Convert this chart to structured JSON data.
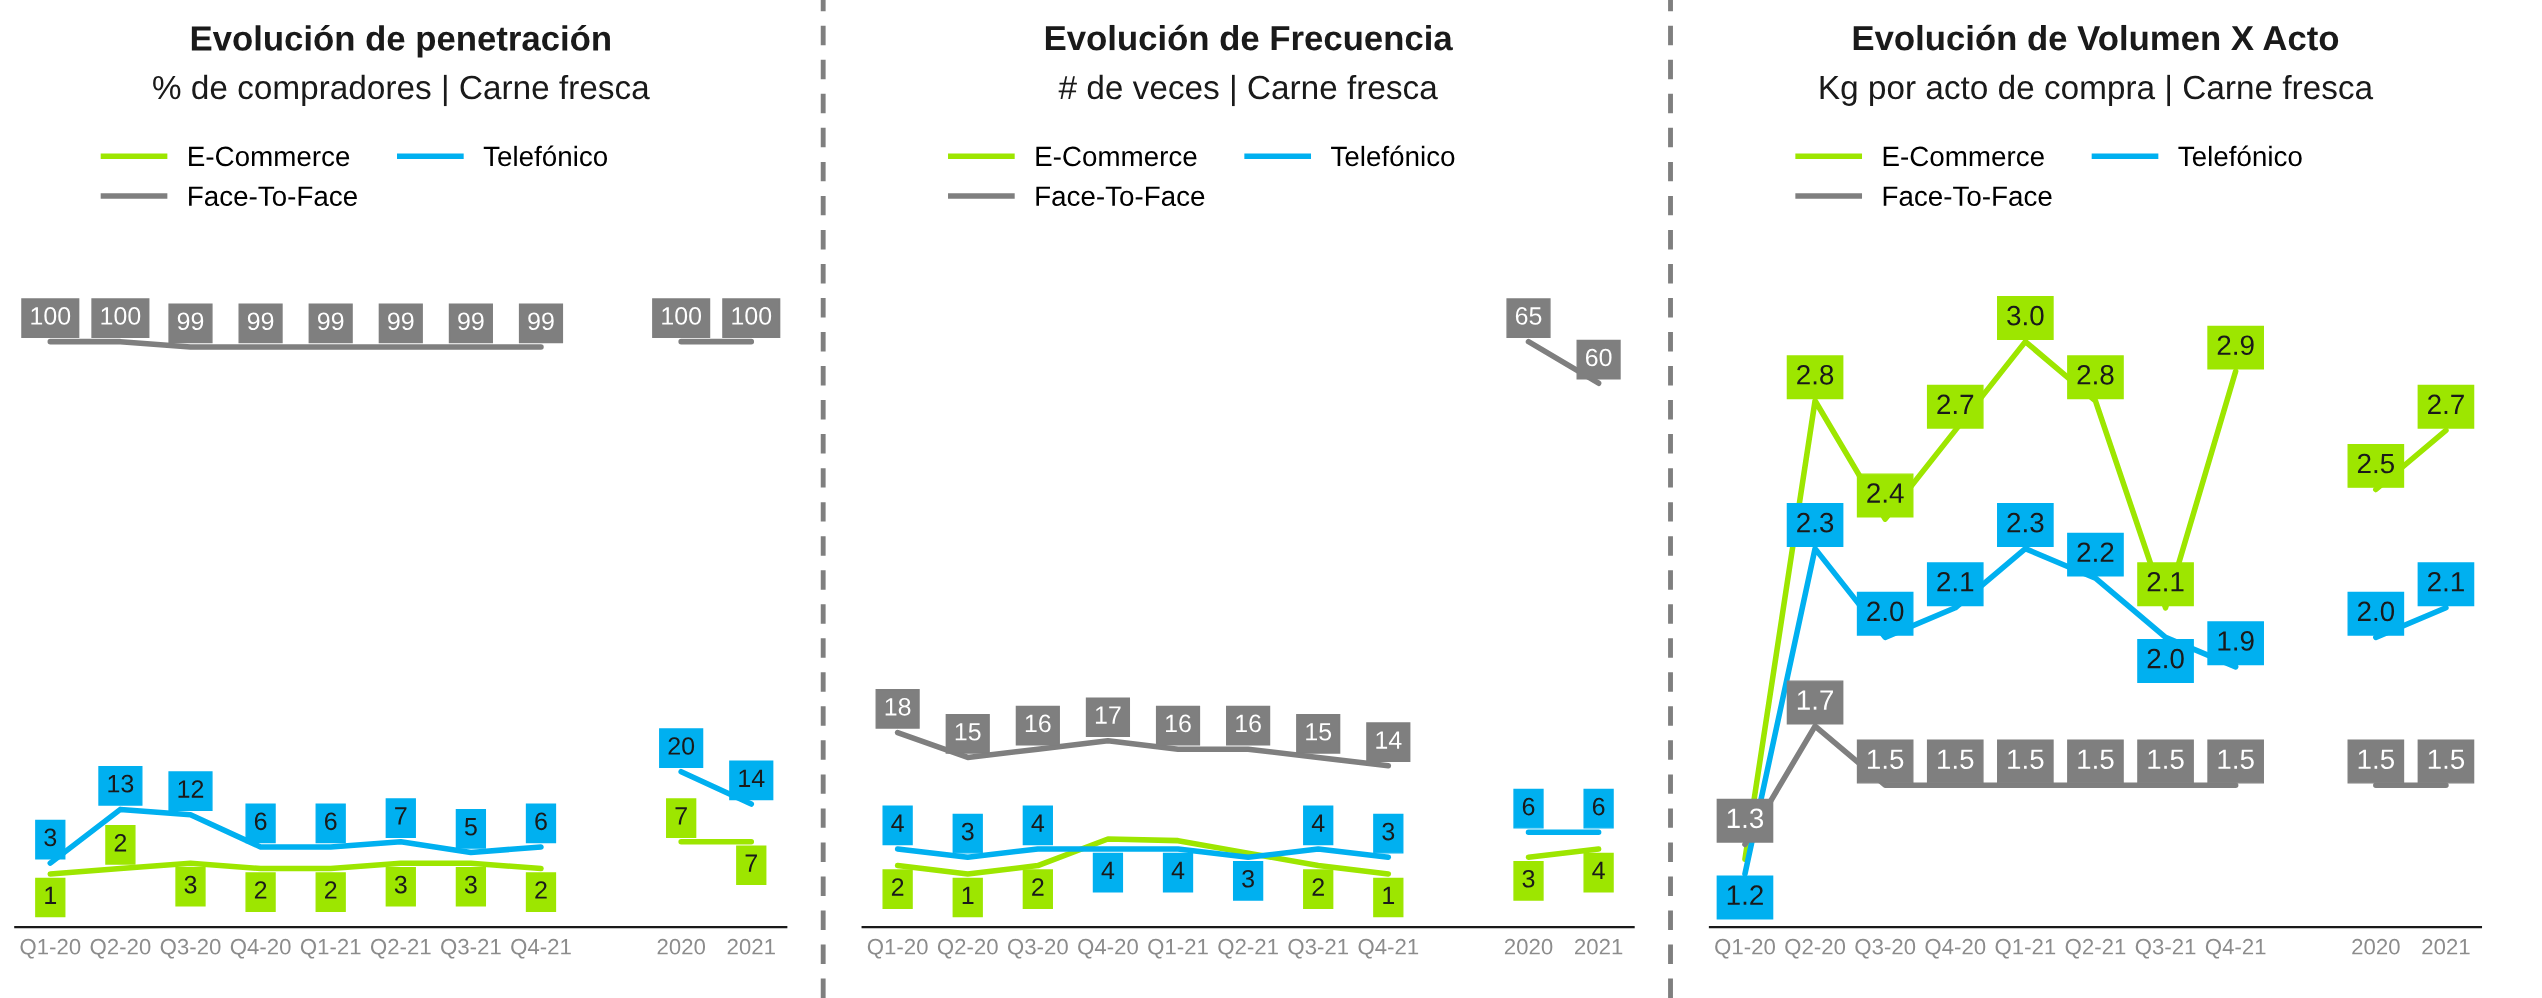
{
  "chart_data": [
    {
      "type": "line",
      "title": "Evolución de penetración",
      "subtitle": "% de compradores | Carne fresca",
      "categories": [
        "Q1-20",
        "Q2-20",
        "Q3-20",
        "Q4-20",
        "Q1-21",
        "Q2-21",
        "Q3-21",
        "Q4-21",
        null,
        "2020",
        "2021"
      ],
      "tick_labels": "x",
      "legend": "top left",
      "line_style": "solid",
      "data_labels": true,
      "series": [
        {
          "name": "E-Commerce",
          "color": "#9de600",
          "values": [
            1,
            2,
            3,
            2,
            2,
            3,
            3,
            2,
            null,
            7,
            7
          ]
        },
        {
          "name": "Telefónico",
          "color": "#00b0f0",
          "values": [
            3,
            13,
            12,
            6,
            6,
            7,
            5,
            6,
            null,
            20,
            14
          ]
        },
        {
          "name": "Face-To-Face",
          "color": "#7f7f7f",
          "values": [
            100,
            100,
            99,
            99,
            99,
            99,
            99,
            99,
            null,
            100,
            100
          ]
        }
      ]
    },
    {
      "type": "line",
      "title": "Evolución de Frecuencia",
      "subtitle": "# de veces | Carne fresca",
      "categories": [
        "Q1-20",
        "Q2-20",
        "Q3-20",
        "Q4-20",
        "Q1-21",
        "Q2-21",
        "Q3-21",
        "Q4-21",
        null,
        "2020",
        "2021"
      ],
      "tick_labels": "x",
      "legend": "top left",
      "line_style": "solid",
      "data_labels": true,
      "series": [
        {
          "name": "E-Commerce",
          "color": "#9de600",
          "values": [
            2,
            1,
            2,
            5.2,
            5.0,
            3.5,
            2,
            1,
            null,
            3,
            4
          ],
          "value_labels": [
            "2",
            "1",
            "2",
            null,
            null,
            null,
            "2",
            "1",
            null,
            "3",
            "4"
          ]
        },
        {
          "name": "Telefónico",
          "color": "#00b0f0",
          "values": [
            4,
            3,
            4,
            4,
            4,
            3,
            4,
            3,
            null,
            6,
            6
          ]
        },
        {
          "name": "Face-To-Face",
          "color": "#7f7f7f",
          "values": [
            18,
            15,
            16,
            17,
            16,
            16,
            15,
            14,
            null,
            65,
            60
          ]
        }
      ]
    },
    {
      "type": "line",
      "title": "Evolución de Volumen X Acto",
      "subtitle": "Kg por acto de compra | Carne fresca",
      "categories": [
        "Q1-20",
        "Q2-20",
        "Q3-20",
        "Q4-20",
        "Q1-21",
        "Q2-21",
        "Q3-21",
        "Q4-21",
        null,
        "2020",
        "2021"
      ],
      "tick_labels": "x",
      "legend": "top left",
      "line_style": "solid",
      "data_labels": true,
      "series": [
        {
          "name": "E-Commerce",
          "color": "#9de600",
          "values": [
            1.25,
            2.8,
            2.4,
            2.7,
            3.0,
            2.8,
            2.1,
            2.9,
            null,
            2.5,
            2.7
          ],
          "value_labels": [
            null,
            "2.8",
            "2.4",
            "2.7",
            "3.0",
            "2.8",
            "2.1",
            "2.9",
            null,
            "2.5",
            "2.7"
          ]
        },
        {
          "name": "Telefónico",
          "color": "#00b0f0",
          "values": [
            1.2,
            2.3,
            2.0,
            2.1,
            2.3,
            2.2,
            2.0,
            1.9,
            null,
            2.0,
            2.1
          ],
          "value_labels": [
            "1.2",
            "2.3",
            "2.0",
            "2.1",
            "2.3",
            "2.2",
            "2.0",
            "1.9",
            null,
            "2.0",
            "2.1"
          ]
        },
        {
          "name": "Face-To-Face",
          "color": "#7f7f7f",
          "values": [
            1.3,
            1.7,
            1.5,
            1.5,
            1.5,
            1.5,
            1.5,
            1.5,
            null,
            1.5,
            1.5
          ],
          "value_labels": [
            "1.3",
            "1.7",
            "1.5",
            "1.5",
            "1.5",
            "1.5",
            "1.5",
            "1.5",
            null,
            "1.5",
            "1.5"
          ]
        }
      ]
    }
  ]
}
